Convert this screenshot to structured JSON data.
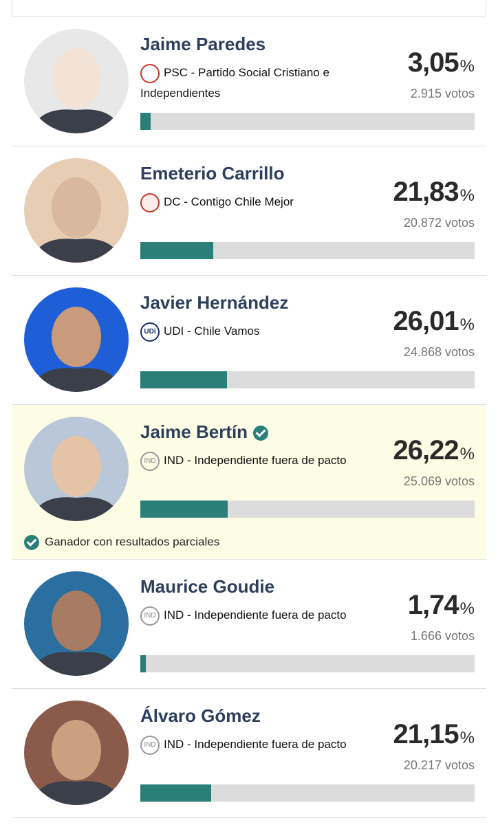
{
  "candidates": [
    {
      "name": "Jaime Paredes",
      "party": "PSC - Partido Social Cristiano e Independientes",
      "percent": {
        "value": 3.05,
        "label": "3,05"
      },
      "percent_sign": "%",
      "votes": "2.915 votos"
    },
    {
      "name": "Emeterio Carrillo",
      "party": "DC - Contigo Chile Mejor",
      "percent": {
        "value": 21.83,
        "label": "21,83"
      },
      "percent_sign": "%",
      "votes": "20.872 votos"
    },
    {
      "name": "Javier Hernández",
      "logo": "UDi",
      "party": "UDI - Chile Vamos",
      "percent": {
        "value": 26.01,
        "label": "26,01"
      },
      "percent_sign": "%",
      "votes": "24.868 votos"
    },
    {
      "name": "Jaime Bertín",
      "logo": "IND",
      "party": "IND - Independiente fuera de pacto",
      "percent": {
        "value": 26.22,
        "label": "26,22"
      },
      "percent_sign": "%",
      "votes": "25.069 votos",
      "winner_note": "Ganador con resultados parciales"
    },
    {
      "name": "Maurice Goudie",
      "logo": "IND",
      "party": "IND - Independiente fuera de pacto",
      "percent": {
        "value": 1.74,
        "label": "1,74"
      },
      "percent_sign": "%",
      "votes": "1.666 votos"
    },
    {
      "name": "Álvaro Gómez",
      "logo": "IND",
      "party": "IND - Independiente fuera de pacto",
      "percent": {
        "value": 21.15,
        "label": "21,15"
      },
      "percent_sign": "%",
      "votes": "20.217 votos"
    }
  ]
}
